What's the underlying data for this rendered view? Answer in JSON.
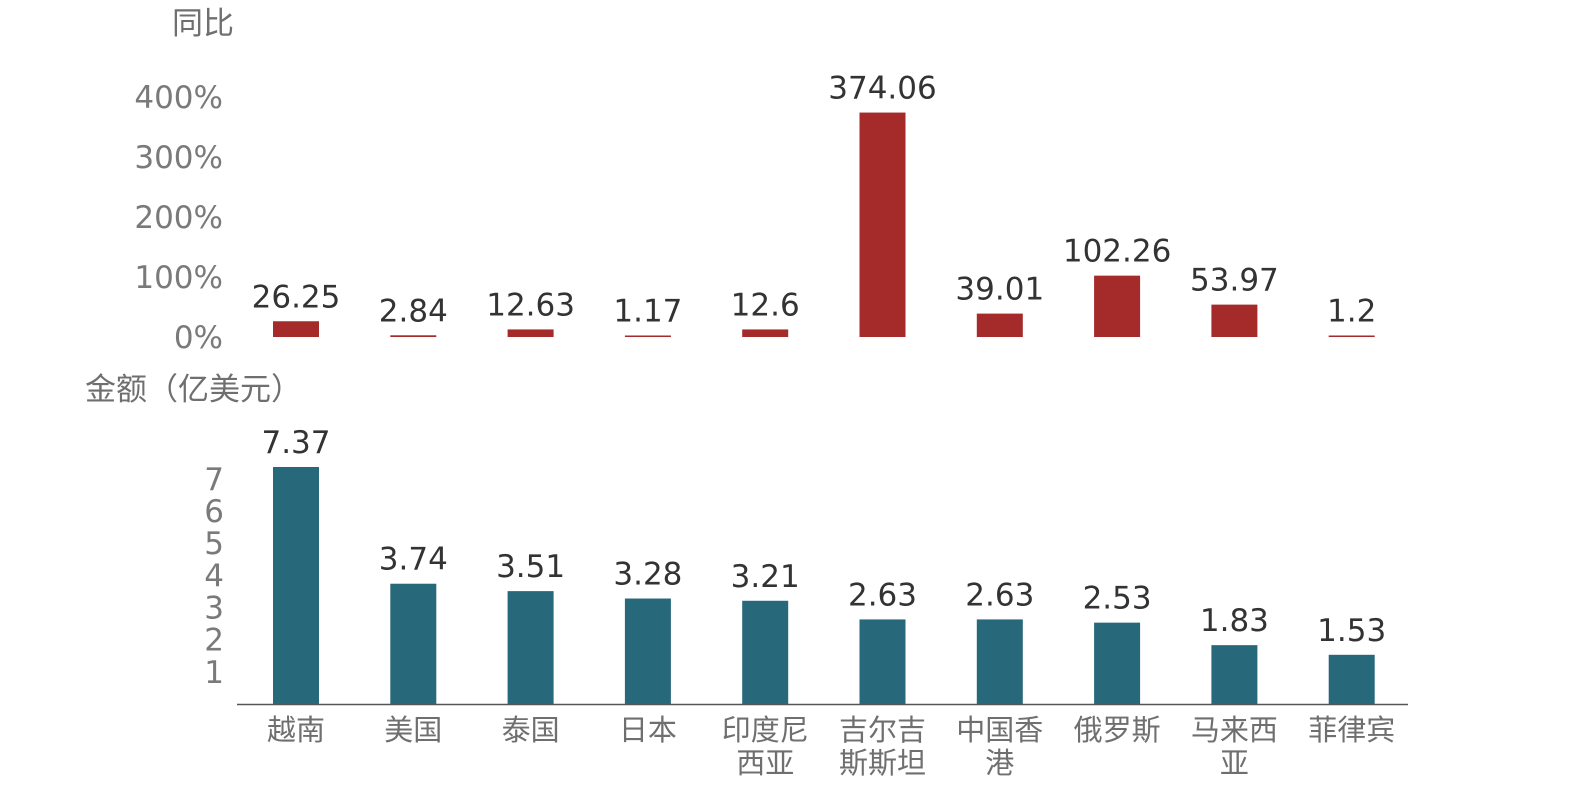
{
  "colors": {
    "yoy_bar": "#a52a2a",
    "amount_bar": "#27697b",
    "axis_line": "#555555"
  },
  "chart_data": [
    {
      "type": "bar",
      "ylabel": "同比",
      "ylim": [
        0,
        400
      ],
      "yticks": [
        {
          "value": 0,
          "label": "0%"
        },
        {
          "value": 100,
          "label": "100%"
        },
        {
          "value": 200,
          "label": "200%"
        },
        {
          "value": 300,
          "label": "300%"
        },
        {
          "value": 400,
          "label": "400%"
        }
      ],
      "categories": [
        "越南",
        "美国",
        "泰国",
        "日本",
        "印度尼西亚",
        "吉尔吉斯斯坦",
        "中国香港",
        "俄罗斯",
        "马来西亚",
        "菲律宾"
      ],
      "values": [
        26.25,
        2.84,
        12.63,
        1.17,
        12.6,
        374.06,
        39.01,
        102.26,
        53.97,
        1.2
      ],
      "value_labels": [
        "26.25",
        "2.84",
        "12.63",
        "1.17",
        "12.6",
        "374.06",
        "39.01",
        "102.26",
        "53.97",
        "1.2"
      ]
    },
    {
      "type": "bar",
      "ylabel": "金额（亿美元）",
      "ylim": [
        0,
        7.37
      ],
      "yticks": [
        {
          "value": 1,
          "label": "1"
        },
        {
          "value": 2,
          "label": "2"
        },
        {
          "value": 3,
          "label": "3"
        },
        {
          "value": 4,
          "label": "4"
        },
        {
          "value": 5,
          "label": "5"
        },
        {
          "value": 6,
          "label": "6"
        },
        {
          "value": 7,
          "label": "7"
        }
      ],
      "categories": [
        "越南",
        "美国",
        "泰国",
        "日本",
        "印度尼西亚",
        "吉尔吉斯斯坦",
        "中国香港",
        "俄罗斯",
        "马来西亚",
        "菲律宾"
      ],
      "category_lines": [
        [
          "越南"
        ],
        [
          "美国"
        ],
        [
          "泰国"
        ],
        [
          "日本"
        ],
        [
          "印度尼",
          "西亚"
        ],
        [
          "吉尔吉",
          "斯斯坦"
        ],
        [
          "中国香",
          "港"
        ],
        [
          "俄罗斯"
        ],
        [
          "马来西",
          "亚"
        ],
        [
          "菲律宾"
        ]
      ],
      "values": [
        7.37,
        3.74,
        3.51,
        3.28,
        3.21,
        2.63,
        2.63,
        2.53,
        1.83,
        1.53
      ],
      "value_labels": [
        "7.37",
        "3.74",
        "3.51",
        "3.28",
        "3.21",
        "2.63",
        "2.63",
        "2.53",
        "1.83",
        "1.53"
      ]
    }
  ]
}
